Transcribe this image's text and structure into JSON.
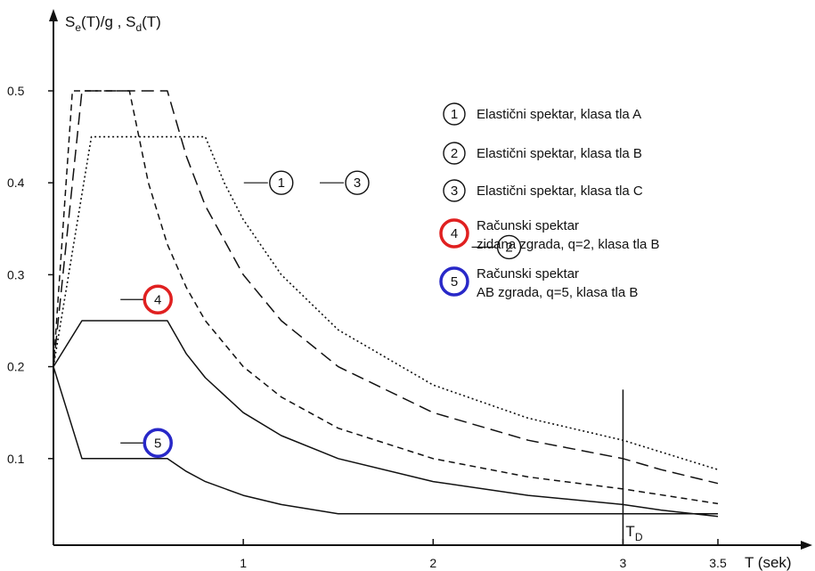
{
  "chart_data": {
    "type": "line",
    "ylabel_main": "S",
    "ylabel_sub1": "e",
    "ylabel_mid": "(T)/g , S",
    "ylabel_sub2": "d",
    "ylabel_end": "(T)",
    "xlabel": "T (sek)",
    "xlim": [
      0,
      3.5
    ],
    "ylim": [
      0,
      0.5
    ],
    "x_ticks": [
      {
        "value": 1,
        "label": "1"
      },
      {
        "value": 2,
        "label": "2"
      },
      {
        "value": 3,
        "label": "3"
      },
      {
        "value": 3.5,
        "label": "3.5"
      }
    ],
    "y_ticks": [
      {
        "value": 0.1,
        "label": "0.1"
      },
      {
        "value": 0.2,
        "label": "0.2"
      },
      {
        "value": 0.3,
        "label": "0.3"
      },
      {
        "value": 0.4,
        "label": "0.4"
      },
      {
        "value": 0.5,
        "label": "0.5"
      }
    ],
    "td_marker": {
      "value": 3,
      "label_main": "T",
      "label_sub": "D"
    },
    "series": [
      {
        "id": "1",
        "dash": "short",
        "color": "#111111",
        "points": [
          [
            0,
            0.2
          ],
          [
            0.1,
            0.5
          ],
          [
            0.4,
            0.5
          ],
          [
            0.5,
            0.4
          ],
          [
            0.6,
            0.333
          ],
          [
            0.7,
            0.286
          ],
          [
            0.8,
            0.25
          ],
          [
            1.0,
            0.2
          ],
          [
            1.2,
            0.167
          ],
          [
            1.5,
            0.133
          ],
          [
            2.0,
            0.1
          ],
          [
            2.5,
            0.08
          ],
          [
            3.0,
            0.067
          ],
          [
            3.5,
            0.051
          ]
        ]
      },
      {
        "id": "2",
        "dash": "long",
        "color": "#111111",
        "points": [
          [
            0,
            0.2
          ],
          [
            0.15,
            0.5
          ],
          [
            0.6,
            0.5
          ],
          [
            0.7,
            0.429
          ],
          [
            0.8,
            0.375
          ],
          [
            1.0,
            0.3
          ],
          [
            1.2,
            0.25
          ],
          [
            1.5,
            0.2
          ],
          [
            2.0,
            0.15
          ],
          [
            2.5,
            0.12
          ],
          [
            3.0,
            0.1
          ],
          [
            3.2,
            0.088
          ],
          [
            3.5,
            0.073
          ]
        ]
      },
      {
        "id": "3",
        "dash": "dotted",
        "color": "#111111",
        "points": [
          [
            0,
            0.2
          ],
          [
            0.2,
            0.45
          ],
          [
            0.8,
            0.45
          ],
          [
            0.9,
            0.4
          ],
          [
            1.0,
            0.36
          ],
          [
            1.2,
            0.3
          ],
          [
            1.5,
            0.24
          ],
          [
            2.0,
            0.18
          ],
          [
            2.5,
            0.144
          ],
          [
            3.0,
            0.12
          ],
          [
            3.5,
            0.088
          ]
        ]
      },
      {
        "id": "4",
        "dash": "solid",
        "color": "#111111",
        "points": [
          [
            0,
            0.2
          ],
          [
            0.15,
            0.25
          ],
          [
            0.6,
            0.25
          ],
          [
            0.7,
            0.214
          ],
          [
            0.8,
            0.188
          ],
          [
            1.0,
            0.15
          ],
          [
            1.2,
            0.125
          ],
          [
            1.5,
            0.1
          ],
          [
            2.0,
            0.075
          ],
          [
            2.5,
            0.06
          ],
          [
            3.0,
            0.05
          ],
          [
            3.2,
            0.044
          ],
          [
            3.5,
            0.037
          ]
        ]
      },
      {
        "id": "5",
        "dash": "solid",
        "color": "#111111",
        "points": [
          [
            0,
            0.2
          ],
          [
            0.15,
            0.1
          ],
          [
            0.6,
            0.1
          ],
          [
            0.7,
            0.086
          ],
          [
            0.8,
            0.075
          ],
          [
            1.0,
            0.06
          ],
          [
            1.2,
            0.05
          ],
          [
            1.5,
            0.04
          ],
          [
            2.0,
            0.04
          ],
          [
            3.0,
            0.04
          ],
          [
            3.5,
            0.04
          ]
        ]
      }
    ],
    "callouts": [
      {
        "id": "1",
        "x": 1.2,
        "y": 0.4,
        "label": "1",
        "color": "#111111"
      },
      {
        "id": "3",
        "x": 1.6,
        "y": 0.4,
        "label": "3",
        "color": "#111111"
      },
      {
        "id": "2",
        "x": 2.4,
        "y": 0.33,
        "label": "2",
        "color": "#111111"
      },
      {
        "id": "4",
        "x": 0.55,
        "y": 0.273,
        "label": "4",
        "color": "#e02020"
      },
      {
        "id": "5",
        "x": 0.55,
        "y": 0.117,
        "label": "5",
        "color": "#2828c8"
      }
    ],
    "legend": {
      "placement": "top-right",
      "items": [
        {
          "num": "1",
          "color": "#111111",
          "lines": [
            "Elastični spektar, klasa tla A"
          ]
        },
        {
          "num": "2",
          "color": "#111111",
          "lines": [
            "Elastični spektar, klasa tla B"
          ]
        },
        {
          "num": "3",
          "color": "#111111",
          "lines": [
            "Elastični spektar, klasa tla C"
          ]
        },
        {
          "num": "4",
          "color": "#e02020",
          "lines": [
            "Računski spektar",
            "zidana zgrada, q=2, klasa tla B"
          ]
        },
        {
          "num": "5",
          "color": "#2828c8",
          "lines": [
            "Računski spektar",
            "AB zgrada, q=5, klasa tla B"
          ]
        }
      ]
    }
  }
}
